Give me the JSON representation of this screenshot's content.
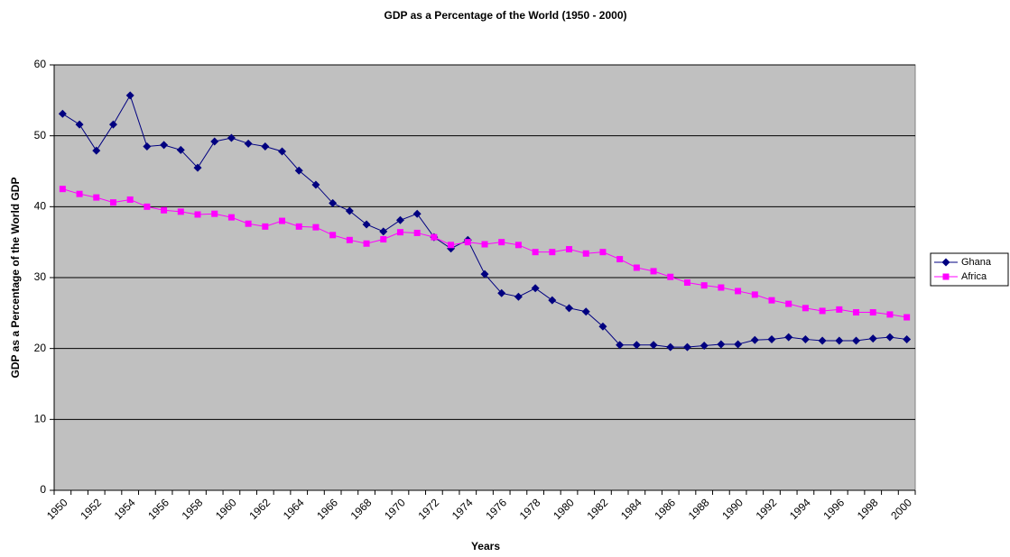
{
  "chart_data": {
    "type": "line",
    "title": "GDP as a Percentage of the World (1950 - 2000)",
    "x_label": "Years",
    "y_label": "GDP as a Percentage of the World GDP",
    "categories": [
      "1950",
      null,
      "1952",
      null,
      "1954",
      null,
      "1956",
      null,
      "1958",
      null,
      "1960",
      null,
      "1962",
      null,
      "1964",
      null,
      "1966",
      null,
      "1968",
      null,
      "1970",
      null,
      "1972",
      null,
      "1974",
      null,
      "1976",
      null,
      "1978",
      null,
      "1980",
      null,
      "1982",
      null,
      "1984",
      null,
      "1986",
      null,
      "1988",
      null,
      "1990",
      null,
      "1992",
      null,
      "1994",
      null,
      "1996",
      null,
      "1998",
      null,
      "2000"
    ],
    "series": [
      {
        "name": "Ghana",
        "color": "#000080",
        "marker": "diamond",
        "values": [
          53.1,
          51.6,
          47.9,
          51.6,
          55.7,
          48.5,
          48.7,
          48.0,
          45.5,
          49.2,
          49.7,
          48.9,
          48.5,
          47.8,
          45.1,
          43.1,
          40.5,
          39.4,
          37.5,
          36.5,
          38.1,
          39.0,
          35.7,
          34.1,
          35.3,
          30.5,
          27.8,
          27.3,
          28.5,
          26.8,
          25.7,
          25.2,
          23.1,
          20.5,
          20.5,
          20.5,
          20.2,
          20.2,
          20.4,
          20.6,
          20.6,
          21.2,
          21.3,
          21.6,
          21.3,
          21.1,
          21.1,
          21.1,
          21.4,
          21.6,
          21.3
        ]
      },
      {
        "name": "Africa",
        "color": "#ff00ff",
        "marker": "square",
        "values": [
          42.5,
          41.8,
          41.3,
          40.6,
          41.0,
          40.0,
          39.5,
          39.3,
          38.9,
          39.0,
          38.5,
          37.6,
          37.2,
          38.0,
          37.2,
          37.1,
          36.0,
          35.3,
          34.8,
          35.4,
          36.4,
          36.3,
          35.7,
          34.6,
          35.0,
          34.7,
          35.0,
          34.6,
          33.6,
          33.6,
          34.0,
          33.4,
          33.6,
          32.6,
          31.4,
          30.9,
          30.1,
          29.3,
          28.9,
          28.6,
          28.1,
          27.6,
          26.8,
          26.3,
          25.7,
          25.3,
          25.5,
          25.1,
          25.1,
          24.8,
          24.4
        ]
      }
    ],
    "ylim": [
      0,
      60
    ],
    "yticks": [
      0,
      10,
      20,
      30,
      40,
      50,
      60
    ],
    "grid": true,
    "legend": "right"
  }
}
